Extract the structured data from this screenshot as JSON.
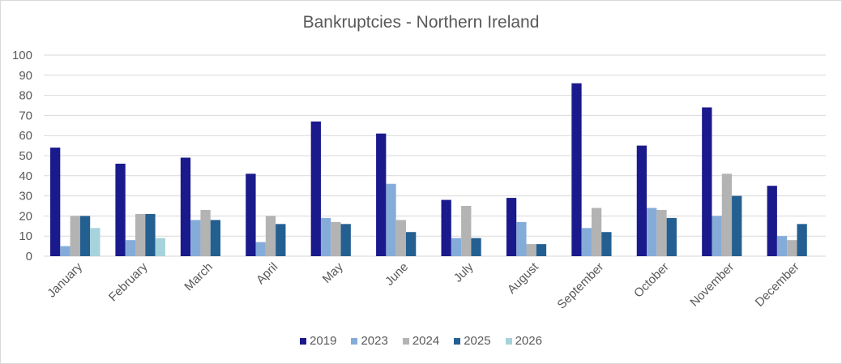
{
  "chart_data": {
    "type": "bar",
    "title": "Bankruptcies - Northern Ireland",
    "xlabel": "",
    "ylabel": "",
    "ylim": [
      0,
      100
    ],
    "yticks": [
      0,
      10,
      20,
      30,
      40,
      50,
      60,
      70,
      80,
      90,
      100
    ],
    "grid": true,
    "legend_position": "bottom",
    "categories": [
      "January",
      "February",
      "March",
      "April",
      "May",
      "June",
      "July",
      "August",
      "September",
      "October",
      "November",
      "December"
    ],
    "series": [
      {
        "name": "2019",
        "color": "#1a1a8c",
        "values": [
          54,
          46,
          49,
          41,
          67,
          61,
          28,
          29,
          86,
          55,
          74,
          35
        ]
      },
      {
        "name": "2023",
        "color": "#85acd9",
        "values": [
          5,
          8,
          18,
          7,
          19,
          36,
          9,
          17,
          14,
          24,
          20,
          10
        ]
      },
      {
        "name": "2024",
        "color": "#b3b3b3",
        "values": [
          20,
          21,
          23,
          20,
          17,
          18,
          25,
          6,
          24,
          23,
          41,
          8
        ]
      },
      {
        "name": "2025",
        "color": "#245f91",
        "values": [
          20,
          21,
          18,
          16,
          16,
          12,
          9,
          6,
          12,
          19,
          30,
          16
        ]
      },
      {
        "name": "2026",
        "color": "#a6d3dc",
        "values": [
          14,
          9,
          null,
          null,
          null,
          null,
          null,
          null,
          null,
          null,
          null,
          null
        ]
      }
    ]
  }
}
